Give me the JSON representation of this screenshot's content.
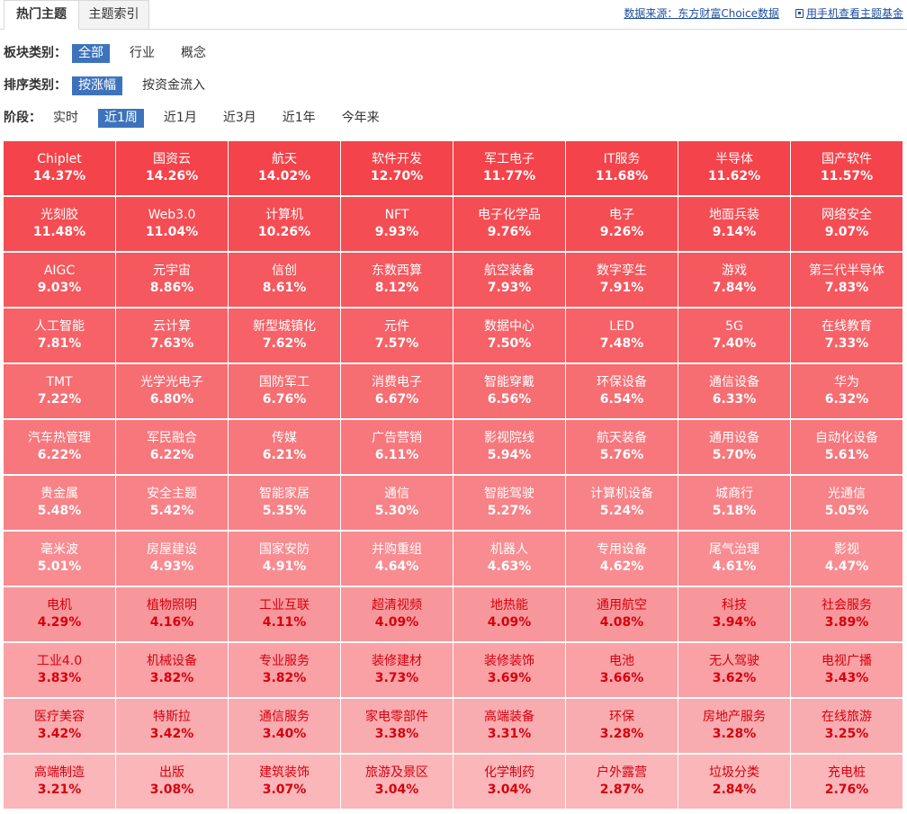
{
  "tabs": [
    {
      "label": "热门主题",
      "active": true
    },
    {
      "label": "主题索引",
      "active": false
    }
  ],
  "toplinks": {
    "data_source": "数据来源：东方财富Choice数据",
    "mobile_link": "用手机查看主题基金"
  },
  "filters": {
    "sector": {
      "label": "板块类别：",
      "options": [
        "全部",
        "行业",
        "概念"
      ],
      "selected": 0
    },
    "sort": {
      "label": "排序类别：",
      "options": [
        "按涨幅",
        "按资金流入"
      ],
      "selected": 0
    },
    "period": {
      "label": "阶段：",
      "options": [
        "实时",
        "近1周",
        "近1月",
        "近3月",
        "近1年",
        "今年来"
      ],
      "selected": 1
    }
  },
  "colors": {
    "top": "#f4434a",
    "bottom": "#fab6b9",
    "text_light": "#ffffff",
    "text_dark": "#d6000e"
  },
  "themes": [
    {
      "name": "Chiplet",
      "pct": "14.37%"
    },
    {
      "name": "国资云",
      "pct": "14.26%"
    },
    {
      "name": "航天",
      "pct": "14.02%"
    },
    {
      "name": "软件开发",
      "pct": "12.70%"
    },
    {
      "name": "军工电子",
      "pct": "11.77%"
    },
    {
      "name": "IT服务",
      "pct": "11.68%"
    },
    {
      "name": "半导体",
      "pct": "11.62%"
    },
    {
      "name": "国产软件",
      "pct": "11.57%"
    },
    {
      "name": "光刻胶",
      "pct": "11.48%"
    },
    {
      "name": "Web3.0",
      "pct": "11.04%"
    },
    {
      "name": "计算机",
      "pct": "10.26%"
    },
    {
      "name": "NFT",
      "pct": "9.93%"
    },
    {
      "name": "电子化学品",
      "pct": "9.76%"
    },
    {
      "name": "电子",
      "pct": "9.26%"
    },
    {
      "name": "地面兵装",
      "pct": "9.14%"
    },
    {
      "name": "网络安全",
      "pct": "9.07%"
    },
    {
      "name": "AIGC",
      "pct": "9.03%"
    },
    {
      "name": "元宇宙",
      "pct": "8.86%"
    },
    {
      "name": "信创",
      "pct": "8.61%"
    },
    {
      "name": "东数西算",
      "pct": "8.12%"
    },
    {
      "name": "航空装备",
      "pct": "7.93%"
    },
    {
      "name": "数字孪生",
      "pct": "7.91%"
    },
    {
      "name": "游戏",
      "pct": "7.84%"
    },
    {
      "name": "第三代半导体",
      "pct": "7.83%"
    },
    {
      "name": "人工智能",
      "pct": "7.81%"
    },
    {
      "name": "云计算",
      "pct": "7.63%"
    },
    {
      "name": "新型城镇化",
      "pct": "7.62%"
    },
    {
      "name": "元件",
      "pct": "7.57%"
    },
    {
      "name": "数据中心",
      "pct": "7.50%"
    },
    {
      "name": "LED",
      "pct": "7.48%"
    },
    {
      "name": "5G",
      "pct": "7.40%"
    },
    {
      "name": "在线教育",
      "pct": "7.33%"
    },
    {
      "name": "TMT",
      "pct": "7.22%"
    },
    {
      "name": "光学光电子",
      "pct": "6.80%"
    },
    {
      "name": "国防军工",
      "pct": "6.76%"
    },
    {
      "name": "消费电子",
      "pct": "6.67%"
    },
    {
      "name": "智能穿戴",
      "pct": "6.56%"
    },
    {
      "name": "环保设备",
      "pct": "6.54%"
    },
    {
      "name": "通信设备",
      "pct": "6.33%"
    },
    {
      "name": "华为",
      "pct": "6.32%"
    },
    {
      "name": "汽车热管理",
      "pct": "6.22%"
    },
    {
      "name": "军民融合",
      "pct": "6.22%"
    },
    {
      "name": "传媒",
      "pct": "6.21%"
    },
    {
      "name": "广告营销",
      "pct": "6.11%"
    },
    {
      "name": "影视院线",
      "pct": "5.94%"
    },
    {
      "name": "航天装备",
      "pct": "5.76%"
    },
    {
      "name": "通用设备",
      "pct": "5.70%"
    },
    {
      "name": "自动化设备",
      "pct": "5.61%"
    },
    {
      "name": "贵金属",
      "pct": "5.48%"
    },
    {
      "name": "安全主题",
      "pct": "5.42%"
    },
    {
      "name": "智能家居",
      "pct": "5.35%"
    },
    {
      "name": "通信",
      "pct": "5.30%"
    },
    {
      "name": "智能驾驶",
      "pct": "5.27%"
    },
    {
      "name": "计算机设备",
      "pct": "5.24%"
    },
    {
      "name": "城商行",
      "pct": "5.18%"
    },
    {
      "name": "光通信",
      "pct": "5.05%"
    },
    {
      "name": "毫米波",
      "pct": "5.01%"
    },
    {
      "name": "房屋建设",
      "pct": "4.93%"
    },
    {
      "name": "国家安防",
      "pct": "4.91%"
    },
    {
      "name": "并购重组",
      "pct": "4.64%"
    },
    {
      "name": "机器人",
      "pct": "4.63%"
    },
    {
      "name": "专用设备",
      "pct": "4.62%"
    },
    {
      "name": "尾气治理",
      "pct": "4.61%"
    },
    {
      "name": "影视",
      "pct": "4.47%"
    },
    {
      "name": "电机",
      "pct": "4.29%"
    },
    {
      "name": "植物照明",
      "pct": "4.16%"
    },
    {
      "name": "工业互联",
      "pct": "4.11%"
    },
    {
      "name": "超清视频",
      "pct": "4.09%"
    },
    {
      "name": "地热能",
      "pct": "4.09%"
    },
    {
      "name": "通用航空",
      "pct": "4.08%"
    },
    {
      "name": "科技",
      "pct": "3.94%"
    },
    {
      "name": "社会服务",
      "pct": "3.89%"
    },
    {
      "name": "工业4.0",
      "pct": "3.83%"
    },
    {
      "name": "机械设备",
      "pct": "3.82%"
    },
    {
      "name": "专业服务",
      "pct": "3.82%"
    },
    {
      "name": "装修建材",
      "pct": "3.73%"
    },
    {
      "name": "装修装饰",
      "pct": "3.69%"
    },
    {
      "name": "电池",
      "pct": "3.66%"
    },
    {
      "name": "无人驾驶",
      "pct": "3.62%"
    },
    {
      "name": "电视广播",
      "pct": "3.43%"
    },
    {
      "name": "医疗美容",
      "pct": "3.42%"
    },
    {
      "name": "特斯拉",
      "pct": "3.42%"
    },
    {
      "name": "通信服务",
      "pct": "3.40%"
    },
    {
      "name": "家电零部件",
      "pct": "3.38%"
    },
    {
      "name": "高端装备",
      "pct": "3.31%"
    },
    {
      "name": "环保",
      "pct": "3.28%"
    },
    {
      "name": "房地产服务",
      "pct": "3.28%"
    },
    {
      "name": "在线旅游",
      "pct": "3.25%"
    },
    {
      "name": "高端制造",
      "pct": "3.21%"
    },
    {
      "name": "出版",
      "pct": "3.08%"
    },
    {
      "name": "建筑装饰",
      "pct": "3.07%"
    },
    {
      "name": "旅游及景区",
      "pct": "3.04%"
    },
    {
      "name": "化学制药",
      "pct": "3.04%"
    },
    {
      "name": "户外露营",
      "pct": "2.87%"
    },
    {
      "name": "垃圾分类",
      "pct": "2.84%"
    },
    {
      "name": "充电桩",
      "pct": "2.76%"
    }
  ]
}
